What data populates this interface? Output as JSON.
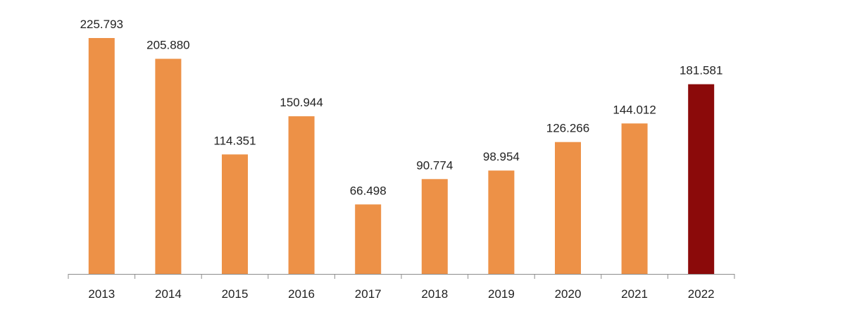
{
  "chart_data": {
    "type": "bar",
    "title": "",
    "xlabel": "",
    "ylabel": "",
    "categories": [
      "2013",
      "2014",
      "2015",
      "2016",
      "2017",
      "2018",
      "2019",
      "2020",
      "2021",
      "2022"
    ],
    "values": [
      225.793,
      205.88,
      114.351,
      150.944,
      66.498,
      90.774,
      98.954,
      126.266,
      144.012,
      181.581
    ],
    "value_labels": [
      "225.793",
      "205.880",
      "114.351",
      "150.944",
      "66.498",
      "90.774",
      "98.954",
      "126.266",
      "144.012",
      "181.581"
    ],
    "ylim": [
      0,
      225.793
    ],
    "grid": false,
    "legend": "none",
    "colors": {
      "default_bar": "#ED9147",
      "highlight_bar": "#8B0A0A",
      "axis": "#8C8C8C",
      "text": "#222222"
    },
    "highlight_category": "2022"
  }
}
